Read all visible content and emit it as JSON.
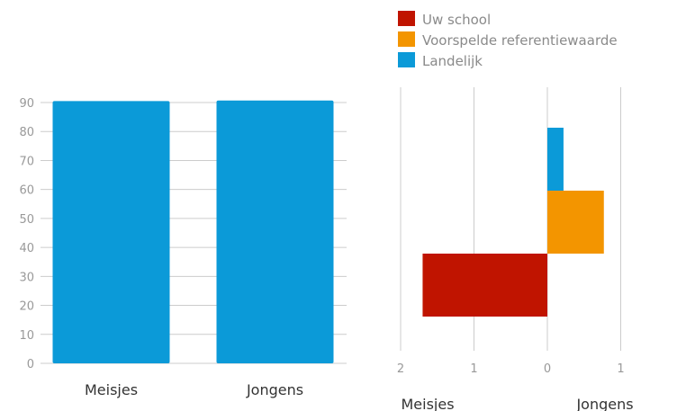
{
  "chart_data": [
    {
      "type": "bar",
      "categories": [
        "Meisjes",
        "Jongens"
      ],
      "values": [
        90.5,
        90.7
      ],
      "ylim": [
        0,
        90
      ],
      "yticks": [
        "0",
        "10",
        "20",
        "30",
        "40",
        "50",
        "60",
        "70",
        "80",
        "90"
      ],
      "grid": true,
      "colors": {
        "bar": "#0b9ad8",
        "grid": "#cccccc"
      }
    },
    {
      "type": "bar",
      "orientation": "horizontal",
      "groups": [
        "Meisjes",
        "Jongens"
      ],
      "xlim": [
        -2,
        1
      ],
      "xticks": [
        "2",
        "1",
        "0",
        "1"
      ],
      "grid": true,
      "legend_position": "top",
      "series": [
        {
          "name": "Uw school",
          "value": -1.7,
          "color": "#c01400"
        },
        {
          "name": "Voorspelde referentiewaarde",
          "value": 0.77,
          "color": "#f39500"
        },
        {
          "name": "Landelijk",
          "value": 0.22,
          "color": "#0b9ad8"
        }
      ]
    }
  ]
}
